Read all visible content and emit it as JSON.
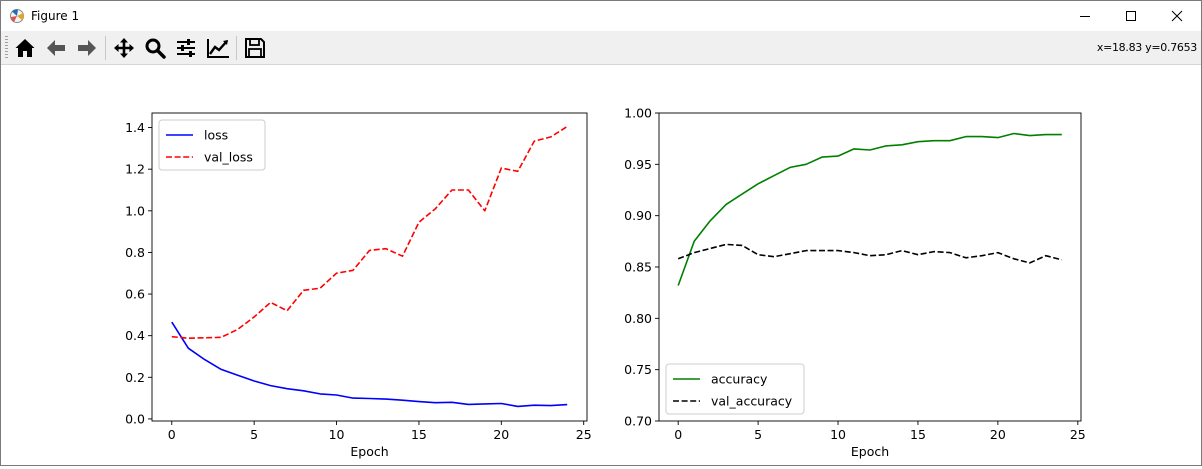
{
  "window": {
    "title": "Figure 1",
    "icon": "matplotlib-figure-icon"
  },
  "titlebar_buttons": [
    {
      "name": "minimize-button",
      "icon": "minimize-icon"
    },
    {
      "name": "maximize-button",
      "icon": "maximize-icon"
    },
    {
      "name": "close-button",
      "icon": "close-icon"
    }
  ],
  "toolbar": {
    "buttons": [
      {
        "name": "home-button",
        "icon": "home-icon"
      },
      {
        "name": "back-button",
        "icon": "arrow-left-icon"
      },
      {
        "name": "forward-button",
        "icon": "arrow-right-icon"
      },
      {
        "name": "pan-button",
        "icon": "move-icon"
      },
      {
        "name": "zoom-button",
        "icon": "magnifier-icon"
      },
      {
        "name": "subplots-button",
        "icon": "sliders-icon"
      },
      {
        "name": "edit-axes-button",
        "icon": "line-chart-icon"
      },
      {
        "name": "save-button",
        "icon": "floppy-disk-icon"
      }
    ],
    "coordinates": "x=18.83 y=0.7653"
  },
  "chart_data": [
    {
      "type": "line",
      "xlabel": "Epoch",
      "ylabel": "",
      "xlim": [
        -1.2,
        25.2
      ],
      "ylim": [
        -0.01,
        1.47
      ],
      "xticks": [
        0,
        5,
        10,
        15,
        20,
        25
      ],
      "yticks": [
        0.0,
        0.2,
        0.4,
        0.6,
        0.8,
        1.0,
        1.2,
        1.4
      ],
      "ytick_decimals": 1,
      "legend_position": "top-left",
      "x": [
        0,
        1,
        2,
        3,
        4,
        5,
        6,
        7,
        8,
        9,
        10,
        11,
        12,
        13,
        14,
        15,
        16,
        17,
        18,
        19,
        20,
        21,
        22,
        23,
        24
      ],
      "series": [
        {
          "name": "loss",
          "color": "#0000ff",
          "dash": "solid",
          "values": [
            0.465,
            0.34,
            0.285,
            0.238,
            0.21,
            0.182,
            0.16,
            0.145,
            0.135,
            0.12,
            0.115,
            0.1,
            0.098,
            0.095,
            0.09,
            0.083,
            0.078,
            0.08,
            0.07,
            0.072,
            0.074,
            0.06,
            0.066,
            0.064,
            0.069
          ]
        },
        {
          "name": "val_loss",
          "color": "#ff0000",
          "dash": "dashed",
          "values": [
            0.395,
            0.388,
            0.39,
            0.392,
            0.43,
            0.49,
            0.56,
            0.52,
            0.618,
            0.628,
            0.7,
            0.714,
            0.81,
            0.818,
            0.782,
            0.945,
            1.01,
            1.1,
            1.1,
            1.0,
            1.205,
            1.19,
            1.335,
            1.355,
            1.405
          ]
        }
      ]
    },
    {
      "type": "line",
      "xlabel": "Epoch",
      "ylabel": "",
      "xlim": [
        -1.2,
        25.2
      ],
      "ylim": [
        0.7,
        1.0
      ],
      "xticks": [
        0,
        5,
        10,
        15,
        20,
        25
      ],
      "yticks": [
        0.7,
        0.75,
        0.8,
        0.85,
        0.9,
        0.95,
        1.0
      ],
      "ytick_decimals": 2,
      "legend_position": "bottom-left",
      "x": [
        0,
        1,
        2,
        3,
        4,
        5,
        6,
        7,
        8,
        9,
        10,
        11,
        12,
        13,
        14,
        15,
        16,
        17,
        18,
        19,
        20,
        21,
        22,
        23,
        24
      ],
      "series": [
        {
          "name": "accuracy",
          "color": "#008000",
          "dash": "solid",
          "values": [
            0.832,
            0.875,
            0.895,
            0.911,
            0.921,
            0.931,
            0.939,
            0.947,
            0.95,
            0.957,
            0.958,
            0.965,
            0.964,
            0.968,
            0.969,
            0.972,
            0.973,
            0.973,
            0.977,
            0.977,
            0.976,
            0.98,
            0.978,
            0.979,
            0.979
          ]
        },
        {
          "name": "val_accuracy",
          "color": "#000000",
          "dash": "dashed",
          "values": [
            0.858,
            0.864,
            0.868,
            0.872,
            0.871,
            0.862,
            0.86,
            0.863,
            0.866,
            0.866,
            0.866,
            0.864,
            0.861,
            0.862,
            0.866,
            0.862,
            0.865,
            0.864,
            0.859,
            0.861,
            0.864,
            0.858,
            0.854,
            0.861,
            0.857
          ]
        }
      ]
    }
  ]
}
